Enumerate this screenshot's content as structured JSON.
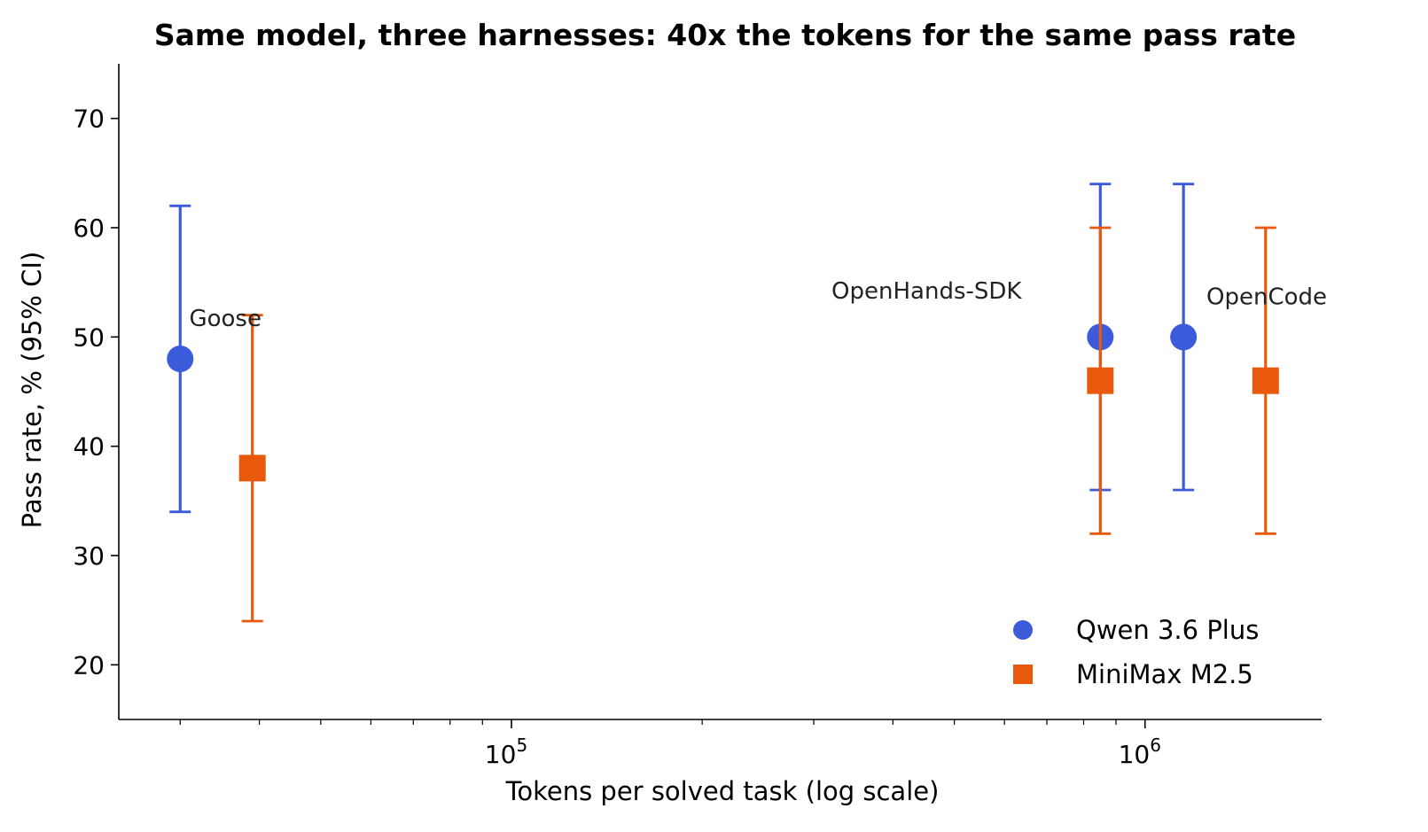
{
  "chart_data": {
    "type": "scatter",
    "title": "Same model, three harnesses: 40x the tokens for the same pass rate",
    "xlabel": "Tokens per solved task (log scale)",
    "ylabel": "Pass rate, % (95% CI)",
    "x_scale": "log",
    "xlim": [
      24000,
      1900000
    ],
    "ylim": [
      15,
      75
    ],
    "y_ticks": [
      20,
      30,
      40,
      50,
      60,
      70
    ],
    "x_major_ticks": [
      {
        "value": 100000,
        "base": "10",
        "exp": "5"
      },
      {
        "value": 1000000,
        "base": "10",
        "exp": "6"
      }
    ],
    "x_minor_ticks": [
      30000,
      40000,
      50000,
      60000,
      70000,
      80000,
      90000,
      200000,
      300000,
      400000,
      500000,
      600000,
      700000,
      800000,
      900000
    ],
    "grid": false,
    "legend_position": "bottom-right",
    "series": [
      {
        "name": "Qwen 3.6 Plus",
        "color": "#3b5bdb",
        "marker": "circle",
        "points": [
          {
            "harness": "Goose",
            "x": 30000,
            "y": 48,
            "ci": [
              34,
              62
            ]
          },
          {
            "harness": "OpenHands-SDK",
            "x": 850000,
            "y": 50,
            "ci": [
              36,
              64
            ]
          },
          {
            "harness": "OpenCode",
            "x": 1150000,
            "y": 50,
            "ci": [
              36,
              64
            ]
          }
        ]
      },
      {
        "name": "MiniMax M2.5",
        "color": "#e8590c",
        "marker": "square",
        "points": [
          {
            "harness": "Goose",
            "x": 39000,
            "y": 38,
            "ci": [
              24,
              52
            ]
          },
          {
            "harness": "OpenHands-SDK",
            "x": 850000,
            "y": 46,
            "ci": [
              32,
              60
            ]
          },
          {
            "harness": "OpenCode",
            "x": 1550000,
            "y": 46,
            "ci": [
              32,
              60
            ]
          }
        ]
      }
    ],
    "annotations": [
      {
        "text": "Goose",
        "x": 31000,
        "y": 51
      },
      {
        "text": "OpenHands-SDK",
        "x": 320000,
        "y": 53.5
      },
      {
        "text": "OpenCode",
        "x": 1250000,
        "y": 53
      }
    ]
  }
}
